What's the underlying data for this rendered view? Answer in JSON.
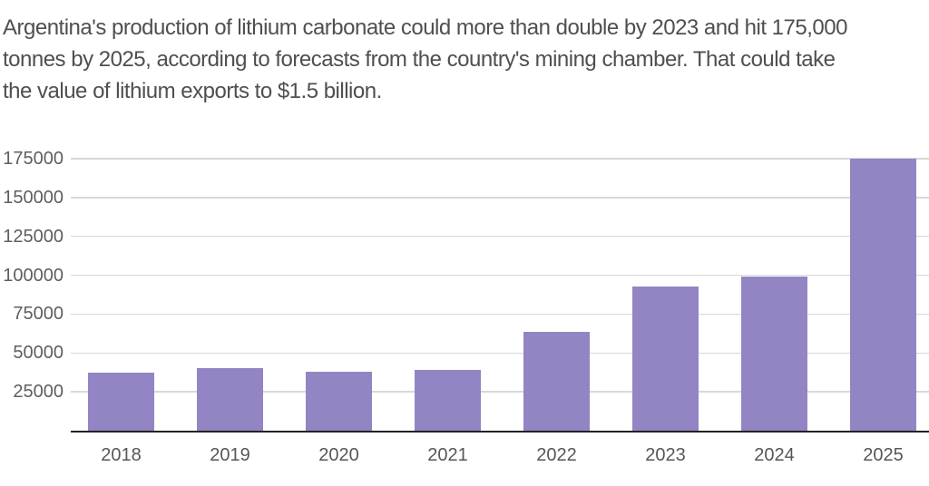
{
  "header": {
    "title_lines": [
      "Argentina's production of lithium carbonate could more than double by 2023 and hit 175,000",
      "tonnes by 2025, according to forecasts from the country's mining chamber. That could take",
      "the value of lithium exports to $1.5 billion."
    ]
  },
  "chart_data": {
    "type": "bar",
    "title": "Argentina's production of lithium carbonate could more than double by 2023 and hit 175,000 tonnes by 2025, according to forecasts from the country's mining chamber. That could take the value of lithium exports to $1.5 billion.",
    "categories": [
      "2018",
      "2019",
      "2020",
      "2021",
      "2022",
      "2023",
      "2024",
      "2025"
    ],
    "values": [
      37500,
      40000,
      38000,
      39000,
      63500,
      93000,
      99000,
      175000
    ],
    "unit": "tonnes",
    "xlabel": "",
    "ylabel": "",
    "ylim": [
      0,
      175000
    ],
    "yticks": [
      25000,
      50000,
      75000,
      100000,
      125000,
      150000,
      175000
    ],
    "ytick_labels": [
      "25000",
      "50000",
      "75000",
      "100000",
      "125000",
      "150000",
      "175000"
    ],
    "grid": "horizontal",
    "legend": "none"
  },
  "colors": {
    "background": "#ffffff",
    "title_text": "#4f4f4f",
    "tick_text": "#5e5e5e",
    "gridline": "#d8d8d8",
    "baseline": "#222222",
    "bar": "#9384c4"
  }
}
